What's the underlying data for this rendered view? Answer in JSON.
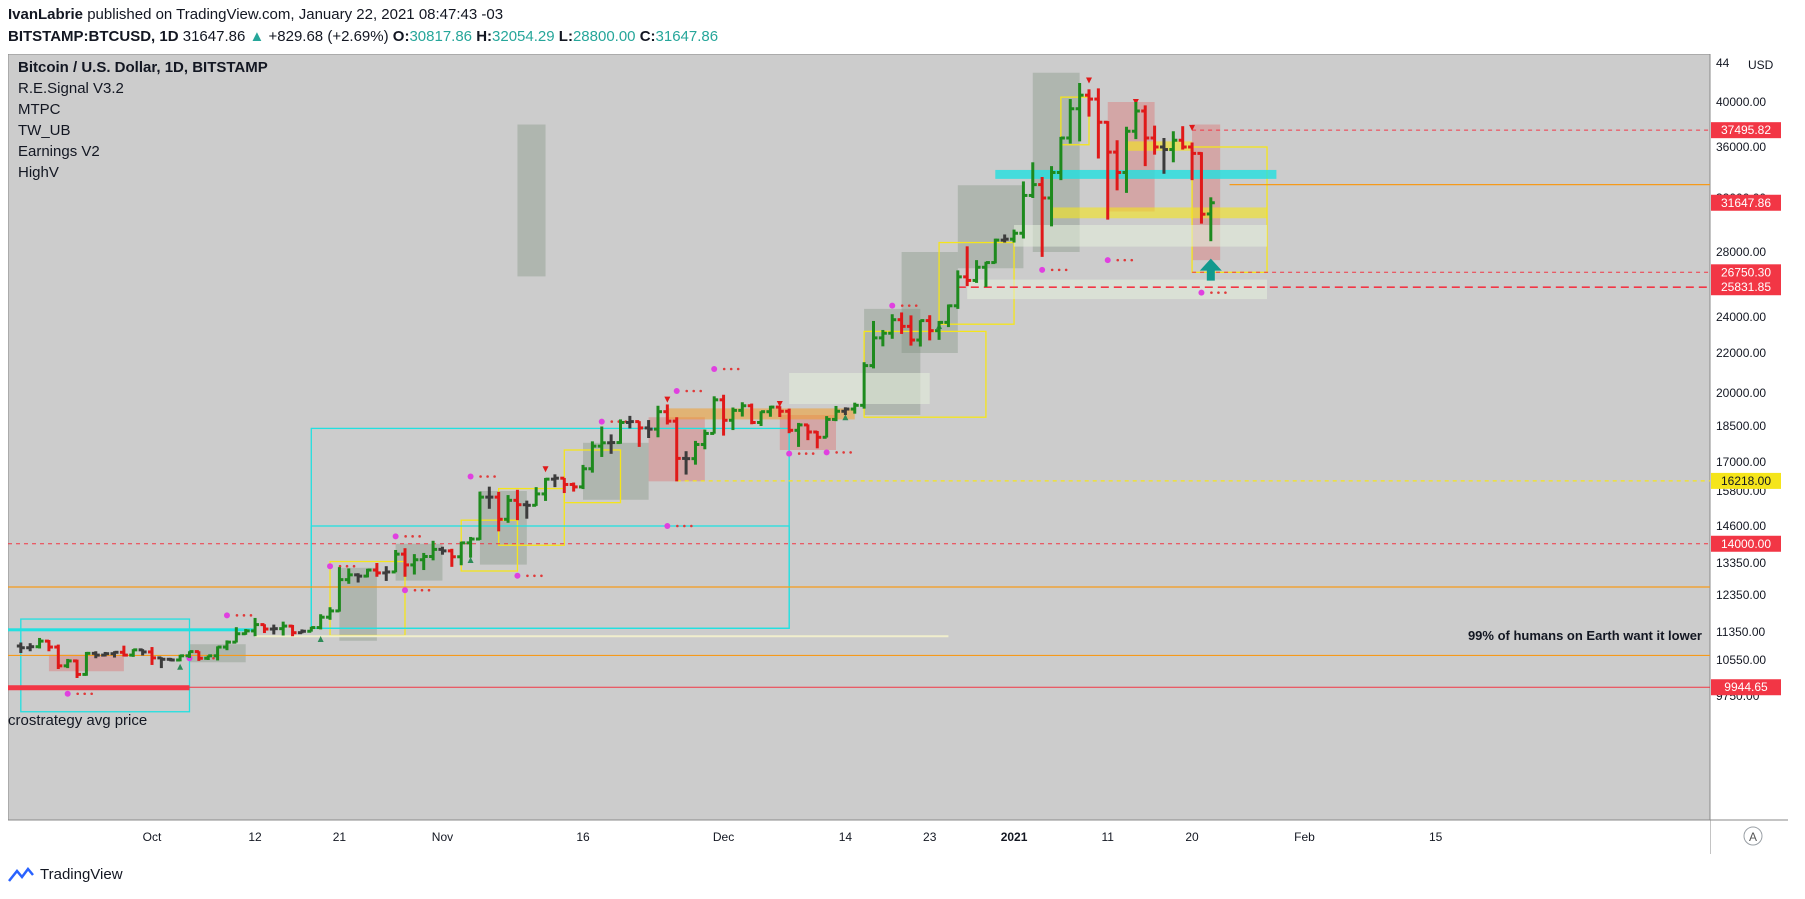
{
  "header": {
    "author": "IvanLabrie",
    "published_text": "published on TradingView.com, January 22, 2021 08:47:43 -03",
    "symbol": "BITSTAMP:BTCUSD, 1D",
    "last_price": "31647.86",
    "change": "+829.68 (+2.69%)",
    "open_label": "O:",
    "open": "30817.86",
    "high_label": "H:",
    "high": "32054.29",
    "low_label": "L:",
    "low": "28800.00",
    "close_label": "C:",
    "close": "31647.86"
  },
  "legend": {
    "title": "Bitcoin / U.S. Dollar, 1D, BITSTAMP",
    "indicators": [
      "R.E.Signal V3.2",
      "MTPC",
      "TW_UB",
      "Earnings V2",
      "HighV"
    ]
  },
  "annotations": {
    "avg_price_text": "crostrategy avg price",
    "humans_text": "99% of humans on Earth want it lower"
  },
  "footer": {
    "brand": "TradingView"
  },
  "colors": {
    "background": "#cccccc",
    "up": "#1e8a1e",
    "down": "#e01919",
    "neutral": "#3c3c3c",
    "cyan": "#22e0e0",
    "yellow": "#f5e51b",
    "orange": "#f59a1b",
    "magenta": "#e040e0"
  },
  "chart_data": {
    "type": "candlestick-ohlc",
    "currency": "USD",
    "y_ticks": [
      "44",
      "40000.00",
      "36000.00",
      "32000.00",
      "28000.00",
      "24000.00",
      "22000.00",
      "20000.00",
      "18500.00",
      "17000.00",
      "15800.00",
      "14600.00",
      "13350.00",
      "12350.00",
      "11350.00",
      "10550.00",
      "9750.00"
    ],
    "y_tick_values": [
      44000,
      40000,
      36000,
      32000,
      28000,
      24000,
      22000,
      20000,
      18500,
      17000,
      15800,
      14600,
      13350,
      12350,
      11350,
      10550,
      9750
    ],
    "x_ticks": [
      {
        "label": "Oct",
        "date": "2020-10-01"
      },
      {
        "label": "12",
        "date": "2020-10-12"
      },
      {
        "label": "21",
        "date": "2020-10-21"
      },
      {
        "label": "Nov",
        "date": "2020-11-01"
      },
      {
        "label": "16",
        "date": "2020-11-16"
      },
      {
        "label": "Dec",
        "date": "2020-12-01"
      },
      {
        "label": "14",
        "date": "2020-12-14"
      },
      {
        "label": "23",
        "date": "2020-12-23"
      },
      {
        "label": "2021",
        "date": "2021-01-01"
      },
      {
        "label": "11",
        "date": "2021-01-11"
      },
      {
        "label": "20",
        "date": "2021-01-20"
      },
      {
        "label": "Feb",
        "date": "2021-02-01"
      },
      {
        "label": "15",
        "date": "2021-02-15"
      }
    ],
    "price_labels": [
      {
        "text": "37495.82",
        "value": 37495.82,
        "color": "#f23645"
      },
      {
        "text": "31647.86",
        "value": 31647.86,
        "color": "#f23645"
      },
      {
        "text": "26750.30",
        "value": 26750.3,
        "color": "#f23645"
      },
      {
        "text": "25831.85",
        "value": 25831.85,
        "color": "#f23645"
      },
      {
        "text": "16218.00",
        "value": 16218.0,
        "color": "#f5e51b"
      },
      {
        "text": "14000.00",
        "value": 14000.0,
        "color": "#f23645"
      },
      {
        "text": "9944.65",
        "value": 9944.65,
        "color": "#f23645"
      }
    ],
    "ohlc": [
      [
        "2020-09-17",
        10950,
        11050,
        10750,
        10900
      ],
      [
        "2020-09-18",
        10900,
        11030,
        10800,
        10930
      ],
      [
        "2020-09-19",
        10930,
        11180,
        10880,
        11090
      ],
      [
        "2020-09-20",
        11090,
        11120,
        10800,
        10920
      ],
      [
        "2020-09-21",
        10920,
        10990,
        10350,
        10420
      ],
      [
        "2020-09-22",
        10420,
        10580,
        10370,
        10530
      ],
      [
        "2020-09-23",
        10530,
        10560,
        10150,
        10230
      ],
      [
        "2020-09-24",
        10230,
        10780,
        10200,
        10740
      ],
      [
        "2020-09-25",
        10740,
        10800,
        10600,
        10690
      ],
      [
        "2020-09-26",
        10690,
        10780,
        10650,
        10730
      ],
      [
        "2020-09-27",
        10730,
        10800,
        10620,
        10770
      ],
      [
        "2020-09-28",
        10770,
        10960,
        10650,
        10690
      ],
      [
        "2020-09-29",
        10690,
        10860,
        10640,
        10840
      ],
      [
        "2020-09-30",
        10840,
        10860,
        10680,
        10780
      ],
      [
        "2020-10-01",
        10780,
        10920,
        10440,
        10610
      ],
      [
        "2020-10-02",
        10610,
        10630,
        10370,
        10570
      ],
      [
        "2020-10-03",
        10570,
        10610,
        10520,
        10550
      ],
      [
        "2020-10-04",
        10550,
        10700,
        10520,
        10670
      ],
      [
        "2020-10-05",
        10670,
        10800,
        10610,
        10790
      ],
      [
        "2020-10-06",
        10790,
        10800,
        10530,
        10600
      ],
      [
        "2020-10-07",
        10600,
        10680,
        10550,
        10670
      ],
      [
        "2020-10-08",
        10670,
        10940,
        10540,
        10920
      ],
      [
        "2020-10-09",
        10920,
        11110,
        10830,
        11060
      ],
      [
        "2020-10-10",
        11060,
        11480,
        11050,
        11300
      ],
      [
        "2020-10-11",
        11300,
        11430,
        11270,
        11380
      ],
      [
        "2020-10-12",
        11380,
        11730,
        11230,
        11550
      ],
      [
        "2020-10-13",
        11550,
        11560,
        11320,
        11430
      ],
      [
        "2020-10-14",
        11430,
        11550,
        11280,
        11440
      ],
      [
        "2020-10-15",
        11440,
        11630,
        11250,
        11510
      ],
      [
        "2020-10-16",
        11510,
        11540,
        11230,
        11330
      ],
      [
        "2020-10-17",
        11330,
        11420,
        11310,
        11370
      ],
      [
        "2020-10-18",
        11370,
        11490,
        11360,
        11470
      ],
      [
        "2020-10-19",
        11470,
        11830,
        11420,
        11750
      ],
      [
        "2020-10-20",
        11750,
        12020,
        11680,
        11920
      ],
      [
        "2020-10-21",
        11920,
        13220,
        11900,
        12830
      ],
      [
        "2020-10-22",
        12830,
        13180,
        12700,
        12980
      ],
      [
        "2020-10-23",
        12980,
        13030,
        12740,
        12940
      ],
      [
        "2020-10-24",
        12940,
        13170,
        12900,
        13130
      ],
      [
        "2020-10-25",
        13130,
        13350,
        12920,
        13040
      ],
      [
        "2020-10-26",
        13040,
        13250,
        12790,
        13070
      ],
      [
        "2020-10-27",
        13070,
        13790,
        13060,
        13650
      ],
      [
        "2020-10-28",
        13650,
        13850,
        12920,
        13290
      ],
      [
        "2020-10-29",
        13290,
        13650,
        12990,
        13460
      ],
      [
        "2020-10-30",
        13460,
        13690,
        13130,
        13570
      ],
      [
        "2020-10-31",
        13570,
        14100,
        13440,
        13810
      ],
      [
        "2020-11-01",
        13810,
        13900,
        13630,
        13760
      ],
      [
        "2020-11-02",
        13760,
        13830,
        13230,
        13560
      ],
      [
        "2020-11-03",
        13560,
        14070,
        13280,
        14030
      ],
      [
        "2020-11-04",
        14030,
        14230,
        13530,
        14160
      ],
      [
        "2020-11-05",
        14160,
        15780,
        14130,
        15590
      ],
      [
        "2020-11-06",
        15590,
        15980,
        15190,
        15590
      ],
      [
        "2020-11-07",
        15590,
        15770,
        14420,
        14830
      ],
      [
        "2020-11-08",
        14830,
        15660,
        14710,
        15480
      ],
      [
        "2020-11-09",
        15480,
        15850,
        14800,
        15330
      ],
      [
        "2020-11-10",
        15330,
        15470,
        14850,
        15310
      ],
      [
        "2020-11-11",
        15310,
        15960,
        15290,
        15700
      ],
      [
        "2020-11-12",
        15700,
        16340,
        15460,
        16290
      ],
      [
        "2020-11-13",
        16290,
        16490,
        15960,
        16330
      ],
      [
        "2020-11-14",
        16330,
        16340,
        15730,
        16070
      ],
      [
        "2020-11-15",
        16070,
        16150,
        15780,
        15970
      ],
      [
        "2020-11-16",
        15970,
        16880,
        15880,
        16720
      ],
      [
        "2020-11-17",
        16720,
        17860,
        16560,
        17660
      ],
      [
        "2020-11-18",
        17660,
        18480,
        17210,
        17800
      ],
      [
        "2020-11-19",
        17800,
        18150,
        17340,
        17810
      ],
      [
        "2020-11-20",
        17810,
        18800,
        17760,
        18660
      ],
      [
        "2020-11-21",
        18660,
        18960,
        18400,
        18700
      ],
      [
        "2020-11-22",
        18700,
        18720,
        17630,
        18420
      ],
      [
        "2020-11-23",
        18420,
        18770,
        18000,
        18370
      ],
      [
        "2020-11-24",
        18370,
        19420,
        18030,
        19150
      ],
      [
        "2020-11-25",
        19150,
        19480,
        18570,
        18720
      ],
      [
        "2020-11-26",
        18720,
        18900,
        16200,
        17150
      ],
      [
        "2020-11-27",
        17150,
        17450,
        16480,
        17140
      ],
      [
        "2020-11-28",
        17140,
        17880,
        16890,
        17730
      ],
      [
        "2020-11-29",
        17730,
        18350,
        17530,
        18190
      ],
      [
        "2020-11-30",
        18190,
        19850,
        18180,
        19690
      ],
      [
        "2020-12-01",
        19690,
        19920,
        18100,
        18760
      ],
      [
        "2020-12-02",
        18760,
        19340,
        18330,
        19210
      ],
      [
        "2020-12-03",
        19210,
        19580,
        18930,
        19420
      ],
      [
        "2020-12-04",
        19420,
        19520,
        18580,
        18660
      ],
      [
        "2020-12-05",
        18660,
        19170,
        18500,
        19150
      ],
      [
        "2020-12-06",
        19150,
        19420,
        18920,
        19360
      ],
      [
        "2020-12-07",
        19360,
        19400,
        18910,
        19170
      ],
      [
        "2020-12-08",
        19170,
        19290,
        18200,
        18320
      ],
      [
        "2020-12-09",
        18320,
        18640,
        17630,
        18550
      ],
      [
        "2020-12-10",
        18550,
        18570,
        17910,
        18250
      ],
      [
        "2020-12-11",
        18250,
        18290,
        17570,
        18030
      ],
      [
        "2020-12-12",
        18030,
        18950,
        18020,
        18800
      ],
      [
        "2020-12-13",
        18800,
        19410,
        18720,
        19170
      ],
      [
        "2020-12-14",
        19170,
        19350,
        19000,
        19270
      ],
      [
        "2020-12-15",
        19270,
        19560,
        19060,
        19440
      ],
      [
        "2020-12-16",
        19440,
        21540,
        19290,
        21370
      ],
      [
        "2020-12-17",
        21370,
        23780,
        21230,
        22840
      ],
      [
        "2020-12-18",
        22840,
        23280,
        22370,
        23100
      ],
      [
        "2020-12-19",
        23100,
        24170,
        22790,
        23850
      ],
      [
        "2020-12-20",
        23850,
        24280,
        23060,
        23480
      ],
      [
        "2020-12-21",
        23480,
        24100,
        22410,
        22720
      ],
      [
        "2020-12-22",
        22720,
        23820,
        22360,
        23800
      ],
      [
        "2020-12-23",
        23800,
        24110,
        22700,
        23240
      ],
      [
        "2020-12-24",
        23240,
        23780,
        22730,
        23700
      ],
      [
        "2020-12-25",
        23700,
        24770,
        23440,
        24690
      ],
      [
        "2020-12-26",
        24690,
        26870,
        24500,
        26470
      ],
      [
        "2020-12-27",
        26470,
        28420,
        25900,
        26250
      ],
      [
        "2020-12-28",
        26250,
        27500,
        26100,
        27060
      ],
      [
        "2020-12-29",
        27060,
        27400,
        25850,
        27350
      ],
      [
        "2020-12-30",
        27350,
        28990,
        27300,
        28880
      ],
      [
        "2020-12-31",
        28880,
        29300,
        28700,
        28950
      ],
      [
        "2021-01-01",
        28950,
        29660,
        28700,
        29390
      ],
      [
        "2021-01-02",
        29390,
        33300,
        29000,
        32200
      ],
      [
        "2021-01-03",
        32200,
        34800,
        32000,
        33050
      ],
      [
        "2021-01-04",
        33050,
        33650,
        27700,
        32000
      ],
      [
        "2021-01-05",
        32000,
        34500,
        29900,
        34000
      ],
      [
        "2021-01-06",
        34000,
        36900,
        33400,
        36800
      ],
      [
        "2021-01-07",
        36800,
        40300,
        36300,
        39400
      ],
      [
        "2021-01-08",
        39400,
        41950,
        36500,
        40700
      ],
      [
        "2021-01-09",
        40700,
        41300,
        38700,
        40300
      ],
      [
        "2021-01-10",
        40300,
        41400,
        35100,
        38200
      ],
      [
        "2021-01-11",
        38200,
        38300,
        30400,
        35600
      ],
      [
        "2021-01-12",
        35600,
        36600,
        32600,
        34000
      ],
      [
        "2021-01-13",
        34000,
        37800,
        32400,
        37400
      ],
      [
        "2021-01-14",
        37400,
        40000,
        36700,
        39200
      ],
      [
        "2021-01-15",
        39200,
        39700,
        34500,
        36800
      ],
      [
        "2021-01-16",
        36800,
        37900,
        35400,
        36000
      ],
      [
        "2021-01-17",
        36000,
        36800,
        33900,
        35800
      ],
      [
        "2021-01-18",
        35800,
        37400,
        34800,
        36600
      ],
      [
        "2021-01-19",
        36600,
        37850,
        35800,
        36000
      ],
      [
        "2021-01-20",
        36000,
        36400,
        33400,
        35500
      ],
      [
        "2021-01-21",
        35500,
        35600,
        30100,
        30800
      ],
      [
        "2021-01-22",
        30818,
        32054,
        28800,
        31648
      ]
    ]
  }
}
